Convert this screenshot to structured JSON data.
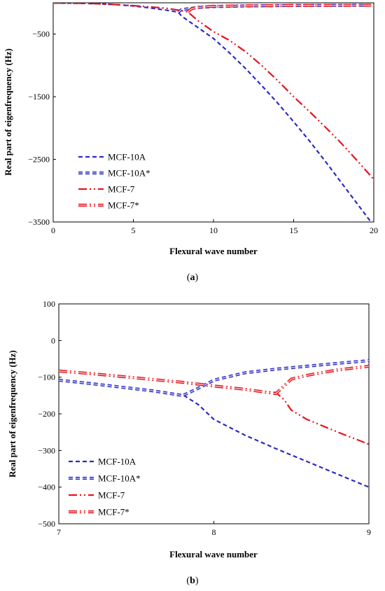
{
  "colors": {
    "blue": "#2b2bc4",
    "blue_light": "#b9b9f2",
    "red": "#e8131b",
    "red_light": "#f7b1b4"
  },
  "chart_data": [
    {
      "type": "line",
      "panel": "(a)",
      "caption_open": "(",
      "caption_letter": "a",
      "caption_close": ")",
      "xlabel": "Flexural wave number",
      "ylabel": "Real part of eigenfrequency (Hz)",
      "xlim": [
        0,
        20
      ],
      "ylim": [
        -3500,
        0
      ],
      "xticks": [
        "0",
        "5",
        "10",
        "15",
        "20"
      ],
      "xtick_values": [
        0,
        5,
        10,
        15,
        20
      ],
      "yticks": [
        "-500",
        "-1500",
        "-2500",
        "-3500"
      ],
      "ytick_values": [
        -500,
        -1500,
        -2500,
        -3500
      ],
      "grid": false,
      "legend_position": "bottom-left",
      "series": [
        {
          "name": "MCF-10A",
          "style": "dash",
          "color": "blue",
          "x": [
            0,
            1,
            2,
            3,
            4,
            5,
            6,
            7,
            7.8,
            8,
            9,
            10,
            11,
            12,
            13,
            14,
            15,
            16,
            17,
            18,
            19,
            20
          ],
          "y": [
            -5,
            -6,
            -10,
            -18,
            -30,
            -50,
            -80,
            -115,
            -150,
            -210,
            -390,
            -570,
            -800,
            -1050,
            -1320,
            -1600,
            -1900,
            -2210,
            -2540,
            -2880,
            -3220,
            -3560
          ]
        },
        {
          "name": "MCF-10A*",
          "style": "dash-double",
          "color": "blue",
          "x": [
            7.8,
            8,
            9,
            10,
            12,
            14,
            16,
            18,
            20
          ],
          "y": [
            -150,
            -110,
            -75,
            -60,
            -50,
            -45,
            -42,
            -40,
            -38
          ]
        },
        {
          "name": "MCF-7",
          "style": "dash-dot-dot",
          "color": "red",
          "x": [
            0,
            1,
            2,
            3,
            4,
            5,
            6,
            7,
            8,
            8.4,
            9,
            10,
            11,
            12,
            13,
            14,
            15,
            16,
            17,
            18,
            19,
            20
          ],
          "y": [
            -5,
            -6,
            -10,
            -18,
            -30,
            -45,
            -65,
            -85,
            -125,
            -145,
            -280,
            -460,
            -600,
            -780,
            -1000,
            -1240,
            -1500,
            -1740,
            -1990,
            -2250,
            -2530,
            -2820
          ]
        },
        {
          "name": "MCF-7*",
          "style": "dash-dot-double",
          "color": "red",
          "x": [
            8.4,
            8.6,
            9,
            10,
            12,
            14,
            16,
            18,
            20
          ],
          "y": [
            -145,
            -100,
            -70,
            -55,
            -48,
            -45,
            -42,
            -40,
            -38
          ]
        }
      ]
    },
    {
      "type": "line",
      "panel": "(b)",
      "caption_open": "(",
      "caption_letter": "b",
      "caption_close": ")",
      "xlabel": "Flexural wave number",
      "ylabel": "Real part of eigenfrequency (Hz)",
      "xlim": [
        7,
        9
      ],
      "ylim": [
        -500,
        100
      ],
      "xticks": [
        "7",
        "8",
        "9"
      ],
      "xtick_values": [
        7,
        8,
        9
      ],
      "yticks": [
        "100",
        "0",
        "-100",
        "-200",
        "-300",
        "-400",
        "-500"
      ],
      "ytick_values": [
        100,
        0,
        -100,
        -200,
        -300,
        -400,
        -500
      ],
      "grid": false,
      "legend_position": "bottom-left",
      "series": [
        {
          "name": "MCF-10A",
          "style": "dash",
          "color": "blue",
          "x": [
            7,
            7.2,
            7.4,
            7.6,
            7.8,
            7.9,
            8.0,
            8.2,
            8.4,
            8.6,
            8.8,
            9.0
          ],
          "y": [
            -108,
            -117,
            -127,
            -137,
            -148,
            -175,
            -215,
            -258,
            -295,
            -330,
            -365,
            -400
          ]
        },
        {
          "name": "MCF-10A*",
          "style": "dash-double",
          "color": "blue",
          "x": [
            7,
            7.2,
            7.4,
            7.6,
            7.8,
            7.9,
            8.0,
            8.2,
            8.4,
            8.6,
            8.8,
            9.0
          ],
          "y": [
            -108,
            -117,
            -127,
            -137,
            -150,
            -130,
            -108,
            -88,
            -78,
            -70,
            -62,
            -55
          ]
        },
        {
          "name": "MCF-7",
          "style": "dash-dot-dot",
          "color": "red",
          "x": [
            7,
            7.2,
            7.4,
            7.6,
            7.8,
            8.0,
            8.2,
            8.4,
            8.45,
            8.5,
            8.6,
            8.8,
            9.0
          ],
          "y": [
            -83,
            -90,
            -98,
            -106,
            -114,
            -124,
            -133,
            -142,
            -160,
            -190,
            -215,
            -250,
            -283
          ]
        },
        {
          "name": "MCF-7*",
          "style": "dash-dot-double",
          "color": "red",
          "x": [
            7,
            7.2,
            7.4,
            7.6,
            7.8,
            8.0,
            8.2,
            8.4,
            8.45,
            8.5,
            8.6,
            8.8,
            9.0
          ],
          "y": [
            -83,
            -90,
            -98,
            -106,
            -114,
            -124,
            -133,
            -145,
            -125,
            -105,
            -95,
            -80,
            -70
          ]
        }
      ]
    }
  ]
}
